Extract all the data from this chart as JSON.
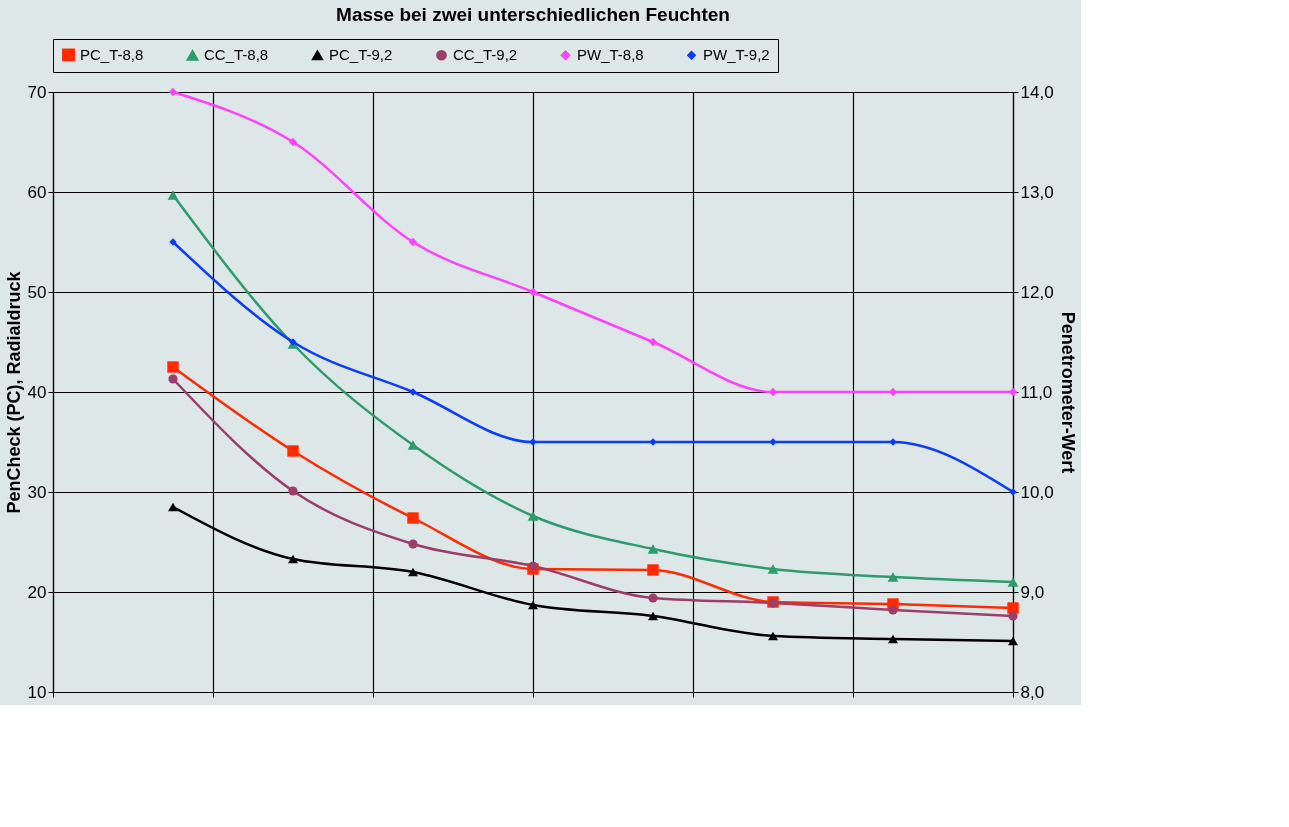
{
  "chart_data": {
    "type": "line",
    "title": "Masse bei zwei unterschiedlichen Feuchten",
    "ylabel": "PenCheck (PC), Radialdruck",
    "y2label": "Penetrometer-Wert",
    "categories": [
      null,
      null,
      null,
      null,
      null,
      null,
      null,
      null
    ],
    "ylim": [
      10,
      70
    ],
    "yticks": [
      10,
      20,
      30,
      40,
      50,
      60,
      70
    ],
    "y2lim": [
      8,
      14
    ],
    "y2ticks": [
      {
        "value": 8,
        "label": "8,0"
      },
      {
        "value": 9,
        "label": "9,0"
      },
      {
        "value": 10,
        "label": "10,0"
      },
      {
        "value": 11,
        "label": "11,0"
      },
      {
        "value": 12,
        "label": "12,0"
      },
      {
        "value": 13,
        "label": "13,0"
      },
      {
        "value": 14,
        "label": "14,0"
      }
    ],
    "grid": true,
    "legend": "top",
    "tick_labels": "y",
    "series": [
      {
        "name": "PC_T-8,8",
        "color": "#ff2a00",
        "marker": "square",
        "values": [
          42.5,
          34.1,
          27.4,
          22.3,
          22.2,
          19.0,
          18.8,
          18.4
        ]
      },
      {
        "name": "CC_T-8,8",
        "color": "#2e9b6a",
        "marker": "triangle",
        "values": [
          59.7,
          44.8,
          34.7,
          27.6,
          24.3,
          22.3,
          21.5,
          21.0
        ]
      },
      {
        "name": "PC_T-9,2",
        "color": "#000000",
        "marker": "triangle",
        "values": [
          28.5,
          23.3,
          22.0,
          18.7,
          17.6,
          15.6,
          15.3,
          15.1
        ]
      },
      {
        "name": "CC_T-9,2",
        "color": "#9c3d6a",
        "marker": "circle",
        "values": [
          41.3,
          30.1,
          24.8,
          22.6,
          19.4,
          18.9,
          18.2,
          17.6
        ]
      },
      {
        "name": "PW_T-8,8",
        "color": "#ff40ff",
        "marker": "diamond",
        "axis": "y2",
        "values": [
          14.0,
          13.5,
          12.5,
          12.0,
          11.5,
          11.0,
          11.0,
          11.0
        ]
      },
      {
        "name": "PW_T-9,2",
        "color": "#0a3cff",
        "marker": "diamond",
        "axis": "y2",
        "values": [
          12.5,
          11.5,
          11.0,
          10.5,
          10.5,
          10.5,
          10.5,
          10.0
        ]
      }
    ]
  }
}
